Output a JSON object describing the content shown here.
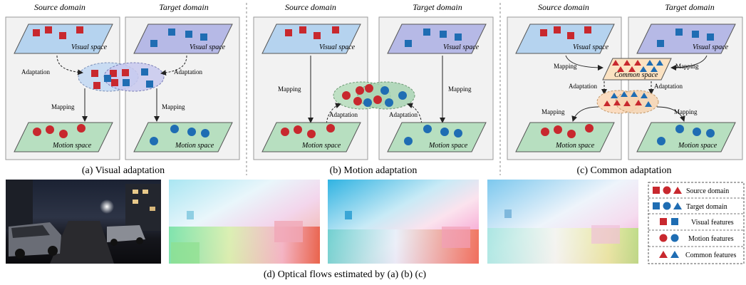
{
  "panels": [
    {
      "source_title": "Source domain",
      "target_title": "Target domain",
      "visual_space": "Visual space",
      "motion_space": "Motion space",
      "adaptation_label": "Adaptation",
      "mapping_label": "Mapping",
      "caption": "(a) Visual adaptation"
    },
    {
      "source_title": "Source domain",
      "target_title": "Target domain",
      "visual_space": "Visual space",
      "motion_space": "Motion space",
      "adaptation_label": "Adaptation",
      "mapping_label": "Mapping",
      "caption": "(b) Motion adaptation"
    },
    {
      "source_title": "Source domain",
      "target_title": "Target domain",
      "visual_space": "Visual space",
      "motion_space": "Motion space",
      "common_space": "Common space",
      "adaptation_label": "Adaptation",
      "mapping_label": "Mapping",
      "caption": "(c) Common adaptation"
    }
  ],
  "bottom_caption": "(d) Optical flows estimated by (a) (b) (c)",
  "legend": {
    "source_domain": "Source domain",
    "target_domain": "Target domain",
    "visual_features": "Visual features",
    "motion_features": "Motion features",
    "common_features": "Common features"
  },
  "colors": {
    "source": "#c8282e",
    "target": "#1f6db3",
    "visual_plane": "#b5d3ef",
    "target_visual_plane": "#b6b9e6",
    "motion_plane": "#b7dfc0",
    "common_plane": "#fbe2c2"
  }
}
